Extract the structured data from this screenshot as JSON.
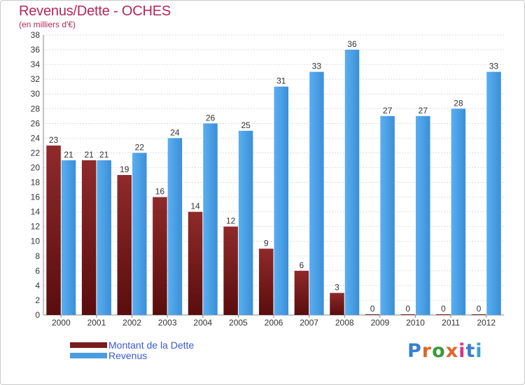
{
  "header": {
    "title": "Revenus/Dette - OCHES",
    "subtitle": "(en milliers d'€)"
  },
  "legend": {
    "items": [
      {
        "label": "Montant de la Dette",
        "color": "#7a1c1c"
      },
      {
        "label": "Revenus",
        "color": "#4a9de0"
      }
    ]
  },
  "logo": {
    "text": "Proxiti"
  },
  "colors": {
    "debt": "#7a1c1c",
    "revenue": "#4a9de0",
    "title": "#b5265a"
  },
  "chart_data": {
    "type": "bar",
    "categories": [
      "2000",
      "2001",
      "2002",
      "2003",
      "2004",
      "2005",
      "2006",
      "2007",
      "2008",
      "2009",
      "2010",
      "2011",
      "2012"
    ],
    "series": [
      {
        "name": "Montant de la Dette",
        "values": [
          23,
          21,
          19,
          16,
          14,
          12,
          9,
          6,
          3,
          0,
          0,
          0,
          0
        ]
      },
      {
        "name": "Revenus",
        "values": [
          21,
          21,
          22,
          24,
          26,
          25,
          31,
          33,
          36,
          27,
          27,
          28,
          33
        ]
      }
    ],
    "title": "Revenus/Dette - OCHES",
    "subtitle": "(en milliers d'€)",
    "ylim": [
      0,
      38
    ],
    "yticks": [
      0,
      2,
      4,
      6,
      8,
      10,
      12,
      14,
      16,
      18,
      20,
      22,
      24,
      26,
      28,
      30,
      32,
      34,
      36,
      38
    ],
    "grid": true,
    "legend_position": "bottom-left"
  }
}
